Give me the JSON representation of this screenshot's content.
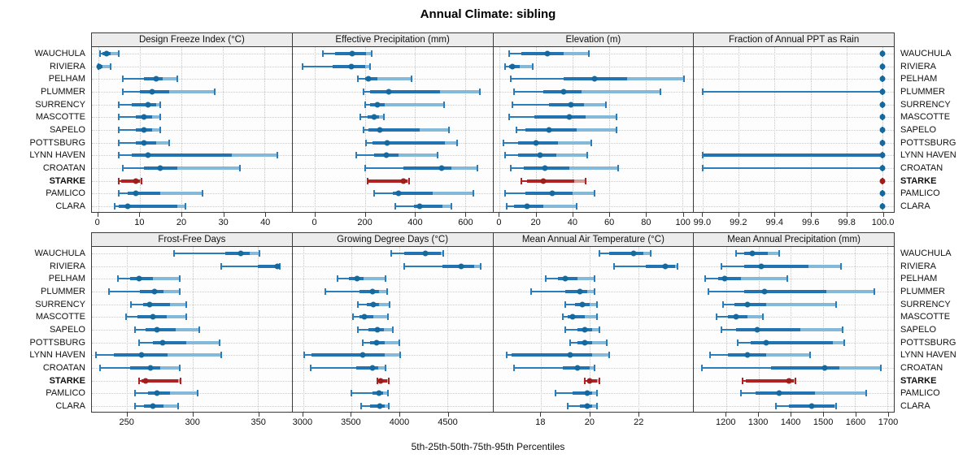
{
  "title": "Annual Climate: sibling",
  "caption": "5th-25th-50th-75th-95th Percentiles",
  "highlight_station": "STARKE",
  "colors": {
    "blue_line": "#2b7cba",
    "blue_band": "#2173b1",
    "blue_band_light": "#85b9da",
    "blue_dot": "#15699f",
    "red_line": "#b22222",
    "red_band": "#b22222",
    "red_band_light": "#d89a98",
    "red_dot": "#9e1e1e",
    "grid": "#c8c8c8",
    "header_bg": "#ececec",
    "panel_bg": "#fdfdfd",
    "border": "#3a3a3a"
  },
  "chart_data": {
    "type": "scatter",
    "style": "trellis percentile dot plot: thin whisker 5th-95th with end caps, light band 25th-95th, dark band 25th-75th, dot at median; STARKE row highlighted red",
    "layout": {
      "rows": 2,
      "cols": 4,
      "grid": "dotted",
      "legend": "none"
    },
    "stations": [
      "WAUCHULA",
      "RIVIERA",
      "PELHAM",
      "PLUMMER",
      "SURRENCY",
      "MASCOTTE",
      "SAPELO",
      "POTTSBURG",
      "LYNN HAVEN",
      "CROATAN",
      "STARKE",
      "PAMLICO",
      "CLARA"
    ],
    "percentiles": [
      5,
      25,
      50,
      75,
      95
    ],
    "panels": [
      {
        "title": "Design Freeze Index (°C)",
        "row": 0,
        "ticks": [
          0,
          10,
          20,
          30,
          40
        ],
        "tick_labels": [
          "0",
          "10",
          "20",
          "30",
          "40"
        ],
        "range": [
          -1.5,
          46.5
        ],
        "series": [
          [
            0.5,
            1,
            2,
            3,
            5
          ],
          [
            0,
            0,
            0.3,
            1,
            3
          ],
          [
            6,
            11,
            14,
            15.5,
            19
          ],
          [
            6,
            10,
            13,
            17,
            28
          ],
          [
            5,
            8,
            12,
            14,
            15
          ],
          [
            5,
            9,
            11,
            13,
            15
          ],
          [
            5,
            9,
            11,
            13,
            15
          ],
          [
            5,
            9,
            11,
            14,
            17
          ],
          [
            5,
            8,
            12,
            32,
            43
          ],
          [
            6,
            11,
            15,
            19,
            34
          ],
          [
            5,
            5.5,
            9,
            10,
            10.5
          ],
          [
            5,
            7,
            9,
            15,
            25
          ],
          [
            4,
            5,
            7,
            19,
            21
          ]
        ]
      },
      {
        "title": "Effective Precipitation (mm)",
        "row": 0,
        "ticks": [
          0,
          200,
          400,
          600
        ],
        "tick_labels": [
          "0",
          "200",
          "400",
          "600"
        ],
        "range": [
          -90,
          710
        ],
        "series": [
          [
            30,
            80,
            150,
            205,
            225
          ],
          [
            -50,
            70,
            145,
            200,
            220
          ],
          [
            170,
            200,
            215,
            250,
            385
          ],
          [
            195,
            220,
            295,
            500,
            660
          ],
          [
            200,
            220,
            250,
            280,
            515
          ],
          [
            180,
            210,
            235,
            255,
            275
          ],
          [
            195,
            215,
            260,
            420,
            535
          ],
          [
            205,
            230,
            290,
            520,
            570
          ],
          [
            165,
            235,
            285,
            335,
            490
          ],
          [
            200,
            355,
            505,
            545,
            650
          ],
          [
            210,
            215,
            355,
            370,
            375
          ],
          [
            235,
            310,
            335,
            470,
            635
          ],
          [
            320,
            395,
            420,
            510,
            545
          ]
        ]
      },
      {
        "title": "Elevation (m)",
        "row": 0,
        "ticks": [
          0,
          20,
          40,
          60,
          80,
          100
        ],
        "tick_labels": [
          "0",
          "20",
          "40",
          "60",
          "80",
          "100"
        ],
        "range": [
          -3.5,
          106
        ],
        "series": [
          [
            5,
            12,
            26,
            35,
            49
          ],
          [
            3,
            5,
            7,
            11,
            18
          ],
          [
            6,
            35,
            52,
            70,
            101
          ],
          [
            8,
            24,
            35,
            45,
            88
          ],
          [
            7,
            27,
            39,
            46,
            58
          ],
          [
            5,
            19,
            38,
            47,
            64
          ],
          [
            9,
            14,
            27,
            42,
            64
          ],
          [
            2,
            10,
            20,
            32,
            50
          ],
          [
            3,
            10,
            22,
            31,
            48
          ],
          [
            6,
            13,
            25,
            38,
            65
          ],
          [
            12,
            15,
            24,
            41,
            47
          ],
          [
            3,
            14,
            29,
            40,
            52
          ],
          [
            4,
            8,
            15,
            24,
            42
          ]
        ]
      },
      {
        "title": "Fraction of Annual PPT as Rain",
        "row": 0,
        "ticks": [
          99.0,
          99.2,
          99.4,
          99.6,
          99.8,
          100.0
        ],
        "tick_labels": [
          "99.0",
          "99.2",
          "99.4",
          "99.6",
          "99.8",
          "100.0"
        ],
        "range": [
          98.95,
          100.065
        ],
        "series": [
          [
            100,
            100,
            100,
            100,
            100
          ],
          [
            100,
            100,
            100,
            100,
            100
          ],
          [
            100,
            100,
            100,
            100,
            100
          ],
          [
            99,
            100,
            100,
            100,
            100
          ],
          [
            100,
            100,
            100,
            100,
            100
          ],
          [
            100,
            100,
            100,
            100,
            100
          ],
          [
            100,
            100,
            100,
            100,
            100
          ],
          [
            100,
            100,
            100,
            100,
            100
          ],
          [
            99,
            99,
            100,
            100,
            100
          ],
          [
            99,
            100,
            100,
            100,
            100
          ],
          [
            100,
            100,
            100,
            100,
            100
          ],
          [
            100,
            100,
            100,
            100,
            100
          ],
          [
            100,
            100,
            100,
            100,
            100
          ]
        ]
      },
      {
        "title": "Frost-Free Days",
        "row": 1,
        "ticks": [
          250,
          300,
          350
        ],
        "tick_labels": [
          "250",
          "300",
          "350"
        ],
        "range": [
          223,
          376
        ],
        "series": [
          [
            286,
            325,
            337,
            344,
            351
          ],
          [
            322,
            350,
            365,
            366,
            367
          ],
          [
            243,
            252,
            259,
            270,
            290
          ],
          [
            236,
            260,
            271,
            278,
            290
          ],
          [
            253,
            262,
            267,
            283,
            295
          ],
          [
            249,
            258,
            270,
            280,
            295
          ],
          [
            256,
            264,
            273,
            287,
            305
          ],
          [
            259,
            270,
            277,
            295,
            321
          ],
          [
            226,
            240,
            261,
            281,
            322
          ],
          [
            229,
            252,
            268,
            275,
            290
          ],
          [
            259,
            261,
            264,
            289,
            291
          ],
          [
            256,
            266,
            273,
            283,
            304
          ],
          [
            256,
            263,
            270,
            278,
            289
          ]
        ]
      },
      {
        "title": "Growing Degree Days (°C)",
        "row": 1,
        "ticks": [
          3000,
          3500,
          4000,
          4500
        ],
        "tick_labels": [
          "3000",
          "3500",
          "4000",
          "4500"
        ],
        "range": [
          2890,
          4970
        ],
        "series": [
          [
            3920,
            4050,
            4270,
            4430,
            4460
          ],
          [
            4050,
            4450,
            4640,
            4780,
            4850
          ],
          [
            3360,
            3480,
            3560,
            3630,
            3860
          ],
          [
            3230,
            3590,
            3720,
            3790,
            3870
          ],
          [
            3570,
            3660,
            3730,
            3790,
            3900
          ],
          [
            3520,
            3590,
            3640,
            3730,
            3880
          ],
          [
            3570,
            3680,
            3770,
            3840,
            3930
          ],
          [
            3620,
            3700,
            3760,
            3850,
            4000
          ],
          [
            3010,
            3090,
            3620,
            3850,
            4010
          ],
          [
            3080,
            3550,
            3720,
            3780,
            3860
          ],
          [
            3770,
            3790,
            3810,
            3870,
            3890
          ],
          [
            3500,
            3720,
            3790,
            3830,
            3880
          ],
          [
            3600,
            3700,
            3800,
            3850,
            3890
          ]
        ]
      },
      {
        "title": "Mean Annual Air Temperature (°C)",
        "row": 1,
        "ticks": [
          18,
          20,
          22
        ],
        "tick_labels": [
          "18",
          "20",
          "22"
        ],
        "range": [
          16.05,
          24.25
        ],
        "series": [
          [
            20.4,
            20.8,
            21.8,
            22.2,
            22.5
          ],
          [
            21.0,
            22.3,
            23.1,
            23.5,
            23.6
          ],
          [
            18.2,
            18.7,
            19.0,
            19.5,
            20.2
          ],
          [
            17.6,
            19.0,
            19.6,
            19.9,
            20.2
          ],
          [
            19.0,
            19.4,
            19.7,
            20.0,
            20.3
          ],
          [
            18.9,
            19.1,
            19.3,
            19.8,
            20.3
          ],
          [
            19.0,
            19.5,
            19.8,
            20.1,
            20.4
          ],
          [
            19.2,
            19.5,
            19.8,
            20.1,
            20.7
          ],
          [
            16.6,
            16.8,
            19.2,
            20.1,
            20.8
          ],
          [
            16.9,
            18.9,
            19.5,
            20.0,
            20.2
          ],
          [
            19.8,
            19.9,
            20.0,
            20.3,
            20.4
          ],
          [
            18.6,
            19.3,
            19.9,
            20.1,
            20.3
          ],
          [
            19.1,
            19.6,
            19.9,
            20.1,
            20.3
          ]
        ]
      },
      {
        "title": "Mean Annual Precipitation (mm)",
        "row": 1,
        "ticks": [
          1200,
          1300,
          1400,
          1500,
          1600,
          1700
        ],
        "tick_labels": [
          "1200",
          "1300",
          "1400",
          "1500",
          "1600",
          "1700"
        ],
        "range": [
          1100,
          1720
        ],
        "series": [
          [
            1230,
            1255,
            1280,
            1330,
            1365
          ],
          [
            1185,
            1255,
            1310,
            1455,
            1555
          ],
          [
            1135,
            1175,
            1195,
            1245,
            1390
          ],
          [
            1145,
            1255,
            1320,
            1510,
            1660
          ],
          [
            1190,
            1225,
            1265,
            1325,
            1540
          ],
          [
            1170,
            1205,
            1230,
            1265,
            1315
          ],
          [
            1185,
            1230,
            1295,
            1430,
            1560
          ],
          [
            1235,
            1275,
            1325,
            1530,
            1565
          ],
          [
            1150,
            1205,
            1265,
            1325,
            1460
          ],
          [
            1125,
            1340,
            1505,
            1550,
            1680
          ],
          [
            1250,
            1260,
            1395,
            1410,
            1415
          ],
          [
            1245,
            1290,
            1365,
            1475,
            1635
          ],
          [
            1355,
            1395,
            1465,
            1535,
            1540
          ]
        ]
      }
    ]
  }
}
